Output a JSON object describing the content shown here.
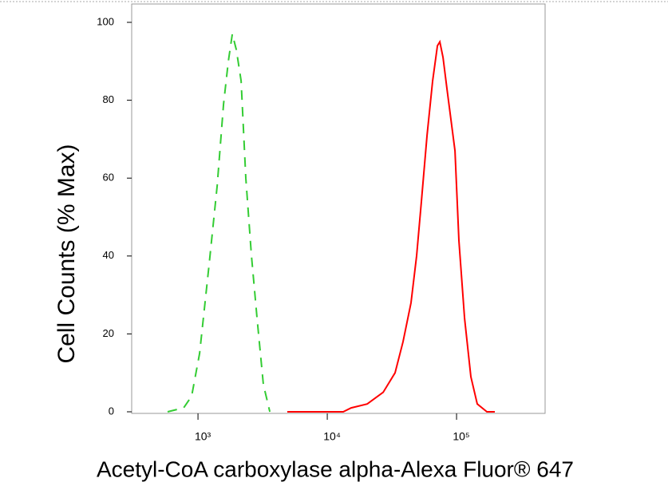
{
  "chart_data": {
    "type": "line",
    "xlabel": "Acetyl-CoA carboxylase alpha-Alexa Fluor® 647",
    "ylabel": "Cell Counts (% Max)",
    "xscale": "log",
    "xlim": [
      307,
      484000
    ],
    "ylim": [
      0,
      100
    ],
    "xticks": [
      {
        "value": 1000,
        "label": "10³"
      },
      {
        "value": 10000,
        "label": "10⁴"
      },
      {
        "value": 100000,
        "label": "10⁵"
      }
    ],
    "yticks": [
      0,
      20,
      40,
      60,
      80,
      100
    ],
    "series": [
      {
        "color": "#33cc33",
        "dash": true,
        "x": [
          582,
          774,
          893,
          1029,
          1220,
          1406,
          1576,
          1717,
          1842,
          1978,
          2154,
          2345,
          2592,
          2862,
          3206,
          3594
        ],
        "values": [
          0,
          1,
          4,
          15,
          38,
          58,
          79,
          90,
          97,
          93,
          85,
          60,
          40,
          24,
          7,
          0
        ]
      },
      {
        "color": "#ff0000",
        "dash": false,
        "x": [
          4910,
          13290,
          15300,
          20350,
          27040,
          33460,
          38560,
          44430,
          49100,
          53450,
          59100,
          65290,
          71120,
          74190,
          78540,
          84290,
          97200,
          104300,
          115300,
          129100,
          144600,
          171700,
          197800
        ],
        "values": [
          0,
          0,
          1,
          2,
          5,
          10,
          18,
          28,
          40,
          54,
          71,
          85,
          94,
          95,
          91,
          83,
          67,
          44,
          24,
          9,
          2,
          0,
          0
        ]
      }
    ]
  }
}
